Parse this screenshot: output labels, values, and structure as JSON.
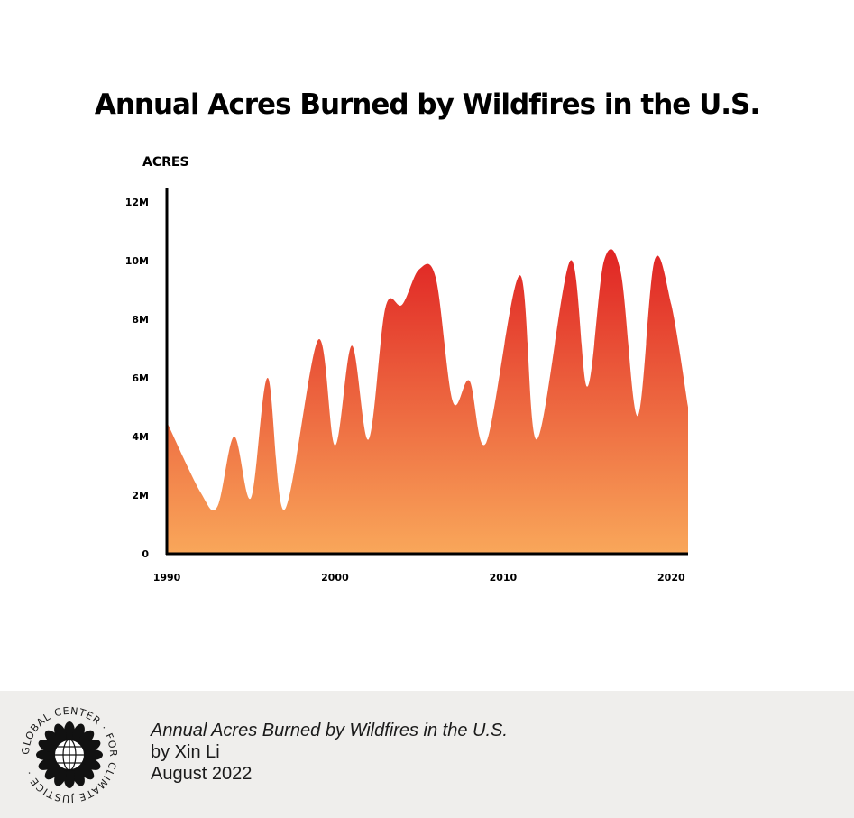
{
  "chart_data": {
    "type": "area",
    "title": "Annual Acres Burned by Wildfires in the U.S.",
    "ylabel": "ACRES",
    "xlabel": "",
    "xlim": [
      1990,
      2021
    ],
    "ylim": [
      0,
      12000000
    ],
    "x_ticks": [
      {
        "value": 1990,
        "label": "1990"
      },
      {
        "value": 2000,
        "label": "2000"
      },
      {
        "value": 2010,
        "label": "2010"
      },
      {
        "value": 2020,
        "label": "2020"
      }
    ],
    "y_ticks": [
      {
        "value": 0,
        "label": "0"
      },
      {
        "value": 2000000,
        "label": "2M"
      },
      {
        "value": 4000000,
        "label": "4M"
      },
      {
        "value": 6000000,
        "label": "6M"
      },
      {
        "value": 8000000,
        "label": "8M"
      },
      {
        "value": 10000000,
        "label": "10M"
      },
      {
        "value": 12000000,
        "label": "12M"
      }
    ],
    "grid": false,
    "points": [
      {
        "x": 1990,
        "y": 4500000
      },
      {
        "x": 1992,
        "y": 2100000
      },
      {
        "x": 1993,
        "y": 1600000
      },
      {
        "x": 1994,
        "y": 4000000
      },
      {
        "x": 1995,
        "y": 1900000
      },
      {
        "x": 1996,
        "y": 6000000
      },
      {
        "x": 1997,
        "y": 1500000
      },
      {
        "x": 1999,
        "y": 7300000
      },
      {
        "x": 2000,
        "y": 3700000
      },
      {
        "x": 2001,
        "y": 7100000
      },
      {
        "x": 2002,
        "y": 3900000
      },
      {
        "x": 2003,
        "y": 8400000
      },
      {
        "x": 2004,
        "y": 8500000
      },
      {
        "x": 2005,
        "y": 9700000
      },
      {
        "x": 2006,
        "y": 9400000
      },
      {
        "x": 2007,
        "y": 5200000
      },
      {
        "x": 2008,
        "y": 5900000
      },
      {
        "x": 2009,
        "y": 3800000
      },
      {
        "x": 2011,
        "y": 9500000
      },
      {
        "x": 2012,
        "y": 3900000
      },
      {
        "x": 2014,
        "y": 10000000
      },
      {
        "x": 2015,
        "y": 5700000
      },
      {
        "x": 2016,
        "y": 10000000
      },
      {
        "x": 2017,
        "y": 9600000
      },
      {
        "x": 2018,
        "y": 4700000
      },
      {
        "x": 2019,
        "y": 10000000
      },
      {
        "x": 2020,
        "y": 8500000
      },
      {
        "x": 2021,
        "y": 5000000
      }
    ],
    "colors": {
      "peak": "#e02424",
      "base": "#f9a75a",
      "axis": "#000000"
    }
  },
  "footer": {
    "title": "Annual Acres Burned by Wildfires in the U.S.",
    "author": "by Xin Li",
    "date": "August 2022",
    "logo_text": "GLOBAL CENTER · FOR CLIMATE JUSTICE ·"
  }
}
